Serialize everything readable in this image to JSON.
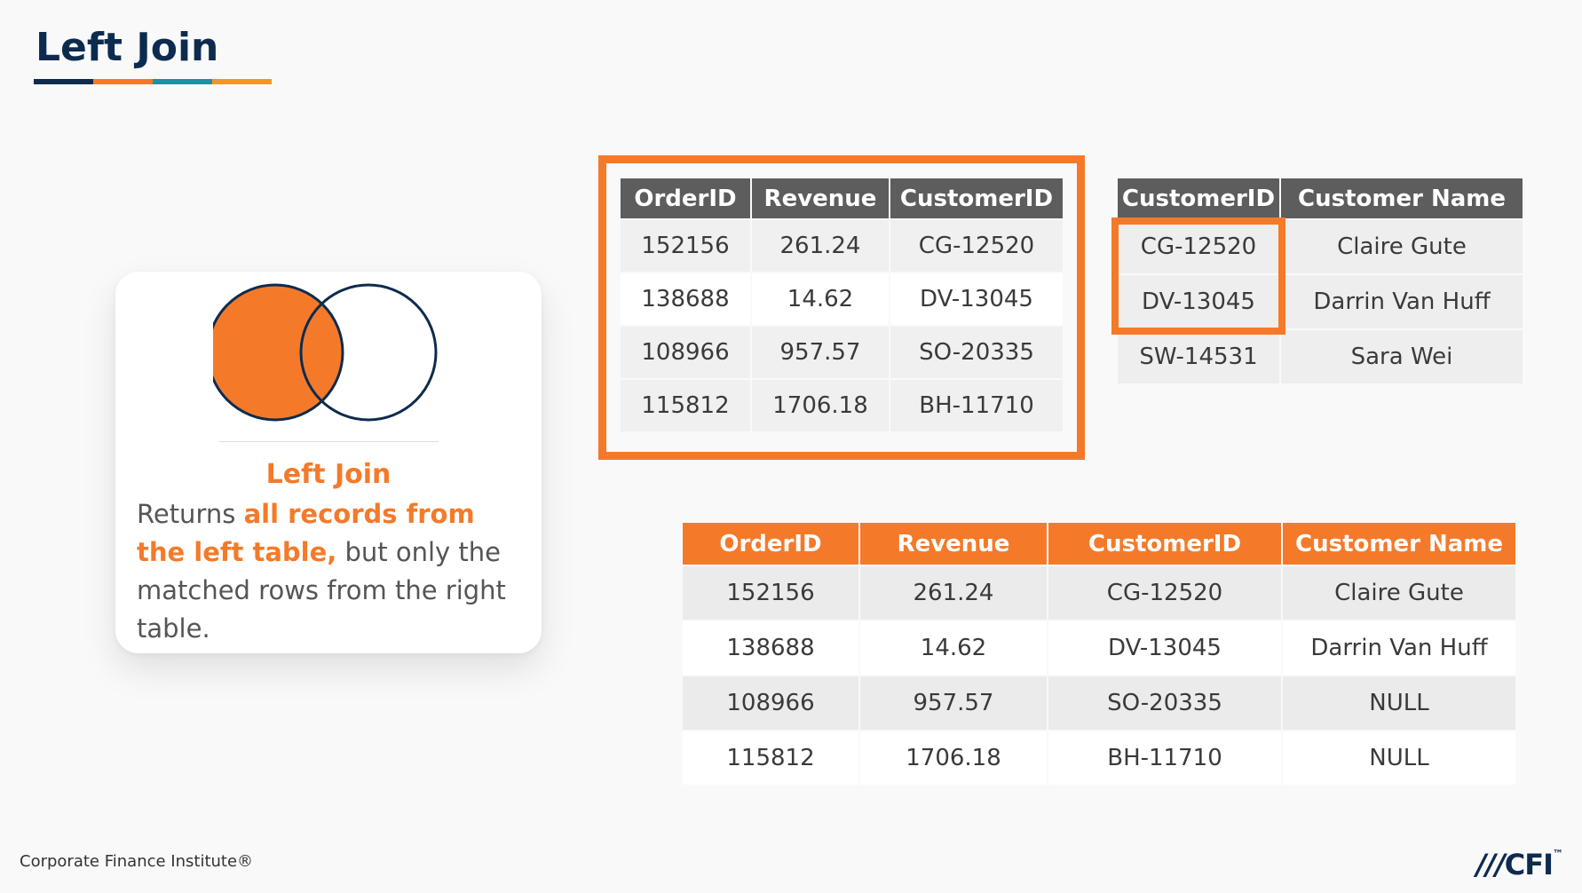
{
  "slide": {
    "title": "Left Join",
    "footer": "Corporate Finance Institute®",
    "logo": {
      "text": "CFI",
      "tm": "™",
      "slashes": "///"
    }
  },
  "card": {
    "title": "Left Join",
    "text_plain_1": "Returns ",
    "text_bold": "all records from the left table,",
    "text_plain_2": " but only the matched rows from the right table.",
    "colors": {
      "left_circle": "#f47a2a",
      "outline": "#0d2b4f"
    }
  },
  "orders_table": {
    "headers": [
      "OrderID",
      "Revenue",
      "CustomerID"
    ],
    "rows": [
      [
        "152156",
        "261.24",
        "CG-12520"
      ],
      [
        "138688",
        "14.62",
        "DV-13045"
      ],
      [
        "108966",
        "957.57",
        "SO-20335"
      ],
      [
        "115812",
        "1706.18",
        "BH-11710"
      ]
    ]
  },
  "customers_table": {
    "headers": [
      "CustomerID",
      "Customer Name"
    ],
    "rows": [
      [
        "CG-12520",
        "Claire Gute"
      ],
      [
        "DV-13045",
        "Darrin Van Huff"
      ],
      [
        "SW-14531",
        "Sara Wei"
      ]
    ]
  },
  "result_table": {
    "headers": [
      "OrderID",
      "Revenue",
      "CustomerID",
      "Customer Name"
    ],
    "rows": [
      [
        "152156",
        "261.24",
        "CG-12520",
        "Claire Gute"
      ],
      [
        "138688",
        "14.62",
        "DV-13045",
        "Darrin Van Huff"
      ],
      [
        "108966",
        "957.57",
        "SO-20335",
        "NULL"
      ],
      [
        "115812",
        "1706.18",
        "BH-11710",
        "NULL"
      ]
    ]
  },
  "colors": {
    "accent": "#f47a2a",
    "navy": "#0d2b4f",
    "header_gray": "#5d5d5d"
  }
}
